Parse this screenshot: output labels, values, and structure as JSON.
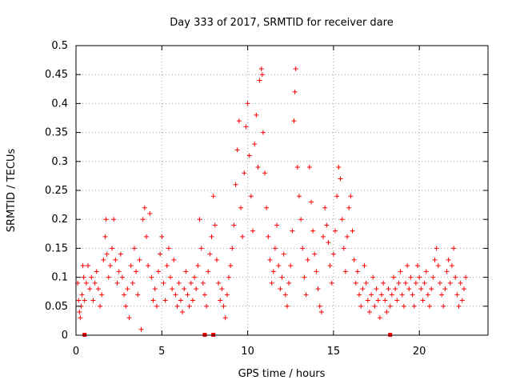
{
  "chart_data": {
    "type": "scatter",
    "title": "Day 333 of 2017, SRMTID for receiver dare",
    "xlabel": "GPS time / hours",
    "ylabel": "SRMTID / TECUs",
    "xlim": [
      0,
      24
    ],
    "ylim": [
      0,
      0.5
    ],
    "xticks": [
      0,
      5,
      10,
      15,
      20
    ],
    "yticks": [
      0,
      0.05,
      0.1,
      0.15,
      0.2,
      0.25,
      0.3,
      0.35,
      0.4,
      0.45,
      0.5
    ],
    "ytick_labels": [
      "0",
      "0.05",
      "0.1",
      "0.15",
      "0.2",
      "0.25",
      "0.3",
      "0.35",
      "0.4",
      "0.45",
      "0.5"
    ],
    "grid": true,
    "marker": "+",
    "color": "#ff0000",
    "series": [
      {
        "name": "SRMTID",
        "points": [
          [
            0.1,
            0.09
          ],
          [
            0.15,
            0.06
          ],
          [
            0.2,
            0.04
          ],
          [
            0.25,
            0.03
          ],
          [
            0.3,
            0.05
          ],
          [
            0.35,
            0.07
          ],
          [
            0.4,
            0.12
          ],
          [
            0.45,
            0.1
          ],
          [
            0.5,
            0.06
          ],
          [
            0.6,
            0.09
          ],
          [
            0.7,
            0.12
          ],
          [
            0.8,
            0.08
          ],
          [
            0.9,
            0.1
          ],
          [
            1.0,
            0.06
          ],
          [
            1.1,
            0.09
          ],
          [
            1.2,
            0.11
          ],
          [
            1.3,
            0.08
          ],
          [
            1.4,
            0.05
          ],
          [
            1.5,
            0.07
          ],
          [
            1.6,
            0.13
          ],
          [
            1.7,
            0.17
          ],
          [
            1.75,
            0.2
          ],
          [
            1.8,
            0.14
          ],
          [
            1.9,
            0.1
          ],
          [
            2.0,
            0.12
          ],
          [
            2.1,
            0.15
          ],
          [
            2.2,
            0.2
          ],
          [
            2.3,
            0.13
          ],
          [
            2.4,
            0.09
          ],
          [
            2.5,
            0.11
          ],
          [
            2.6,
            0.14
          ],
          [
            2.7,
            0.1
          ],
          [
            2.8,
            0.07
          ],
          [
            2.9,
            0.05
          ],
          [
            3.0,
            0.08
          ],
          [
            3.1,
            0.03
          ],
          [
            3.2,
            0.12
          ],
          [
            3.3,
            0.09
          ],
          [
            3.4,
            0.15
          ],
          [
            3.5,
            0.11
          ],
          [
            3.6,
            0.07
          ],
          [
            3.7,
            0.13
          ],
          [
            3.8,
            0.01
          ],
          [
            3.9,
            0.2
          ],
          [
            4.0,
            0.22
          ],
          [
            4.1,
            0.17
          ],
          [
            4.2,
            0.12
          ],
          [
            4.3,
            0.21
          ],
          [
            4.4,
            0.1
          ],
          [
            4.5,
            0.06
          ],
          [
            4.6,
            0.08
          ],
          [
            4.7,
            0.05
          ],
          [
            4.8,
            0.11
          ],
          [
            4.9,
            0.14
          ],
          [
            5.0,
            0.17
          ],
          [
            5.1,
            0.09
          ],
          [
            5.2,
            0.06
          ],
          [
            5.3,
            0.12
          ],
          [
            5.4,
            0.15
          ],
          [
            5.5,
            0.1
          ],
          [
            5.6,
            0.08
          ],
          [
            5.7,
            0.13
          ],
          [
            5.8,
            0.07
          ],
          [
            5.9,
            0.05
          ],
          [
            6.0,
            0.09
          ],
          [
            6.1,
            0.06
          ],
          [
            6.2,
            0.04
          ],
          [
            6.3,
            0.08
          ],
          [
            6.4,
            0.11
          ],
          [
            6.5,
            0.07
          ],
          [
            6.6,
            0.05
          ],
          [
            6.7,
            0.09
          ],
          [
            6.8,
            0.06
          ],
          [
            6.9,
            0.1
          ],
          [
            7.0,
            0.08
          ],
          [
            7.1,
            0.12
          ],
          [
            7.2,
            0.2
          ],
          [
            7.3,
            0.15
          ],
          [
            7.4,
            0.09
          ],
          [
            7.5,
            0.07
          ],
          [
            7.6,
            0.05
          ],
          [
            7.7,
            0.11
          ],
          [
            7.8,
            0.14
          ],
          [
            7.9,
            0.17
          ],
          [
            8.0,
            0.24
          ],
          [
            8.1,
            0.19
          ],
          [
            8.2,
            0.13
          ],
          [
            8.3,
            0.09
          ],
          [
            8.4,
            0.06
          ],
          [
            8.5,
            0.08
          ],
          [
            8.6,
            0.05
          ],
          [
            8.7,
            0.03
          ],
          [
            8.8,
            0.07
          ],
          [
            8.9,
            0.1
          ],
          [
            9.0,
            0.12
          ],
          [
            9.1,
            0.15
          ],
          [
            9.2,
            0.19
          ],
          [
            9.3,
            0.26
          ],
          [
            9.4,
            0.32
          ],
          [
            9.5,
            0.37
          ],
          [
            9.6,
            0.22
          ],
          [
            9.7,
            0.17
          ],
          [
            9.8,
            0.28
          ],
          [
            9.9,
            0.36
          ],
          [
            10.0,
            0.4
          ],
          [
            10.1,
            0.31
          ],
          [
            10.2,
            0.24
          ],
          [
            10.3,
            0.18
          ],
          [
            10.4,
            0.33
          ],
          [
            10.5,
            0.38
          ],
          [
            10.6,
            0.29
          ],
          [
            10.7,
            0.44
          ],
          [
            10.8,
            0.46
          ],
          [
            10.85,
            0.45
          ],
          [
            10.9,
            0.35
          ],
          [
            11.0,
            0.28
          ],
          [
            11.1,
            0.22
          ],
          [
            11.2,
            0.17
          ],
          [
            11.3,
            0.13
          ],
          [
            11.4,
            0.09
          ],
          [
            11.5,
            0.11
          ],
          [
            11.6,
            0.15
          ],
          [
            11.7,
            0.19
          ],
          [
            11.8,
            0.12
          ],
          [
            11.9,
            0.08
          ],
          [
            12.0,
            0.1
          ],
          [
            12.1,
            0.14
          ],
          [
            12.2,
            0.07
          ],
          [
            12.3,
            0.05
          ],
          [
            12.4,
            0.09
          ],
          [
            12.5,
            0.12
          ],
          [
            12.6,
            0.18
          ],
          [
            12.7,
            0.37
          ],
          [
            12.75,
            0.42
          ],
          [
            12.8,
            0.46
          ],
          [
            12.9,
            0.29
          ],
          [
            13.0,
            0.24
          ],
          [
            13.1,
            0.2
          ],
          [
            13.2,
            0.15
          ],
          [
            13.3,
            0.1
          ],
          [
            13.4,
            0.07
          ],
          [
            13.5,
            0.13
          ],
          [
            13.6,
            0.29
          ],
          [
            13.7,
            0.23
          ],
          [
            13.8,
            0.18
          ],
          [
            13.9,
            0.14
          ],
          [
            14.0,
            0.11
          ],
          [
            14.1,
            0.08
          ],
          [
            14.2,
            0.05
          ],
          [
            14.3,
            0.04
          ],
          [
            14.4,
            0.17
          ],
          [
            14.5,
            0.22
          ],
          [
            14.6,
            0.19
          ],
          [
            14.7,
            0.16
          ],
          [
            14.8,
            0.12
          ],
          [
            14.9,
            0.09
          ],
          [
            15.0,
            0.14
          ],
          [
            15.1,
            0.18
          ],
          [
            15.2,
            0.24
          ],
          [
            15.3,
            0.29
          ],
          [
            15.4,
            0.27
          ],
          [
            15.5,
            0.2
          ],
          [
            15.6,
            0.15
          ],
          [
            15.7,
            0.11
          ],
          [
            15.8,
            0.17
          ],
          [
            15.9,
            0.22
          ],
          [
            16.0,
            0.24
          ],
          [
            16.1,
            0.18
          ],
          [
            16.2,
            0.13
          ],
          [
            16.3,
            0.09
          ],
          [
            16.4,
            0.11
          ],
          [
            16.5,
            0.07
          ],
          [
            16.6,
            0.05
          ],
          [
            16.7,
            0.08
          ],
          [
            16.8,
            0.12
          ],
          [
            16.9,
            0.09
          ],
          [
            17.0,
            0.06
          ],
          [
            17.1,
            0.04
          ],
          [
            17.2,
            0.07
          ],
          [
            17.3,
            0.1
          ],
          [
            17.4,
            0.05
          ],
          [
            17.5,
            0.08
          ],
          [
            17.6,
            0.06
          ],
          [
            17.7,
            0.03
          ],
          [
            17.8,
            0.07
          ],
          [
            17.9,
            0.09
          ],
          [
            18.0,
            0.06
          ],
          [
            18.1,
            0.04
          ],
          [
            18.2,
            0.08
          ],
          [
            18.3,
            0.05
          ],
          [
            18.4,
            0.07
          ],
          [
            18.5,
            0.1
          ],
          [
            18.6,
            0.08
          ],
          [
            18.7,
            0.06
          ],
          [
            18.8,
            0.09
          ],
          [
            18.9,
            0.11
          ],
          [
            19.0,
            0.07
          ],
          [
            19.1,
            0.05
          ],
          [
            19.2,
            0.09
          ],
          [
            19.3,
            0.12
          ],
          [
            19.4,
            0.08
          ],
          [
            19.5,
            0.1
          ],
          [
            19.6,
            0.07
          ],
          [
            19.7,
            0.05
          ],
          [
            19.8,
            0.09
          ],
          [
            19.9,
            0.12
          ],
          [
            20.0,
            0.1
          ],
          [
            20.1,
            0.08
          ],
          [
            20.2,
            0.06
          ],
          [
            20.3,
            0.09
          ],
          [
            20.4,
            0.11
          ],
          [
            20.5,
            0.07
          ],
          [
            20.6,
            0.05
          ],
          [
            20.7,
            0.08
          ],
          [
            20.8,
            0.1
          ],
          [
            20.9,
            0.13
          ],
          [
            21.0,
            0.15
          ],
          [
            21.1,
            0.12
          ],
          [
            21.2,
            0.09
          ],
          [
            21.3,
            0.07
          ],
          [
            21.4,
            0.05
          ],
          [
            21.5,
            0.08
          ],
          [
            21.6,
            0.11
          ],
          [
            21.7,
            0.13
          ],
          [
            21.8,
            0.09
          ],
          [
            21.9,
            0.12
          ],
          [
            22.0,
            0.15
          ],
          [
            22.1,
            0.1
          ],
          [
            22.2,
            0.07
          ],
          [
            22.3,
            0.05
          ],
          [
            22.4,
            0.09
          ],
          [
            22.5,
            0.06
          ],
          [
            22.6,
            0.08
          ],
          [
            22.7,
            0.1
          ]
        ]
      }
    ],
    "marks_on_axis": [
      0.5,
      7.5,
      8.0,
      18.3
    ]
  }
}
